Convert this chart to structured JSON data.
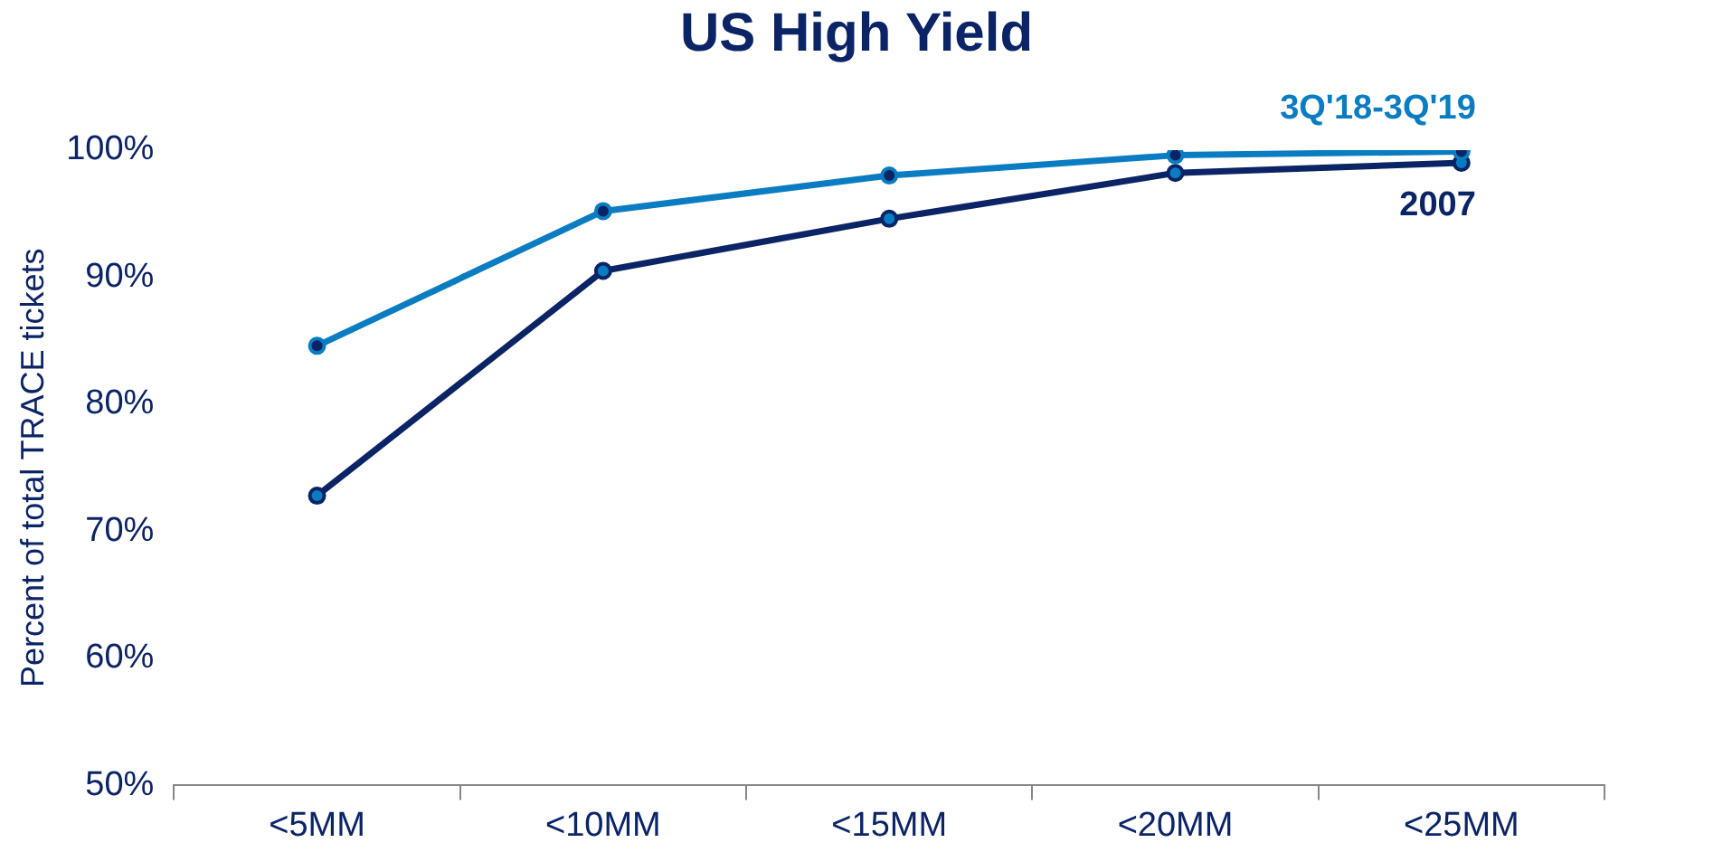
{
  "chart_data": {
    "type": "line",
    "title": "US High Yield",
    "ylabel": "Percent of total TRACE tickets",
    "categories": [
      "<5MM",
      "<10MM",
      "<15MM",
      "<20MM",
      "<25MM"
    ],
    "series": [
      {
        "name": "3Q'18-3Q'19",
        "color": "#0a7cc1",
        "values": [
          84.6,
          95.2,
          98.0,
          99.6,
          99.9
        ]
      },
      {
        "name": "2007",
        "color": "#0b2466",
        "values": [
          72.8,
          90.5,
          94.6,
          98.2,
          99.0
        ]
      }
    ],
    "ylim": [
      50,
      100
    ],
    "yticks": [
      {
        "value": 50,
        "label": "50%"
      },
      {
        "value": 60,
        "label": "60%"
      },
      {
        "value": 70,
        "label": "70%"
      },
      {
        "value": 80,
        "label": "80%"
      },
      {
        "value": 90,
        "label": "90%"
      },
      {
        "value": 100,
        "label": "100%"
      }
    ],
    "grid": false,
    "legend": false,
    "marker": "circle",
    "line_style": "solid"
  }
}
